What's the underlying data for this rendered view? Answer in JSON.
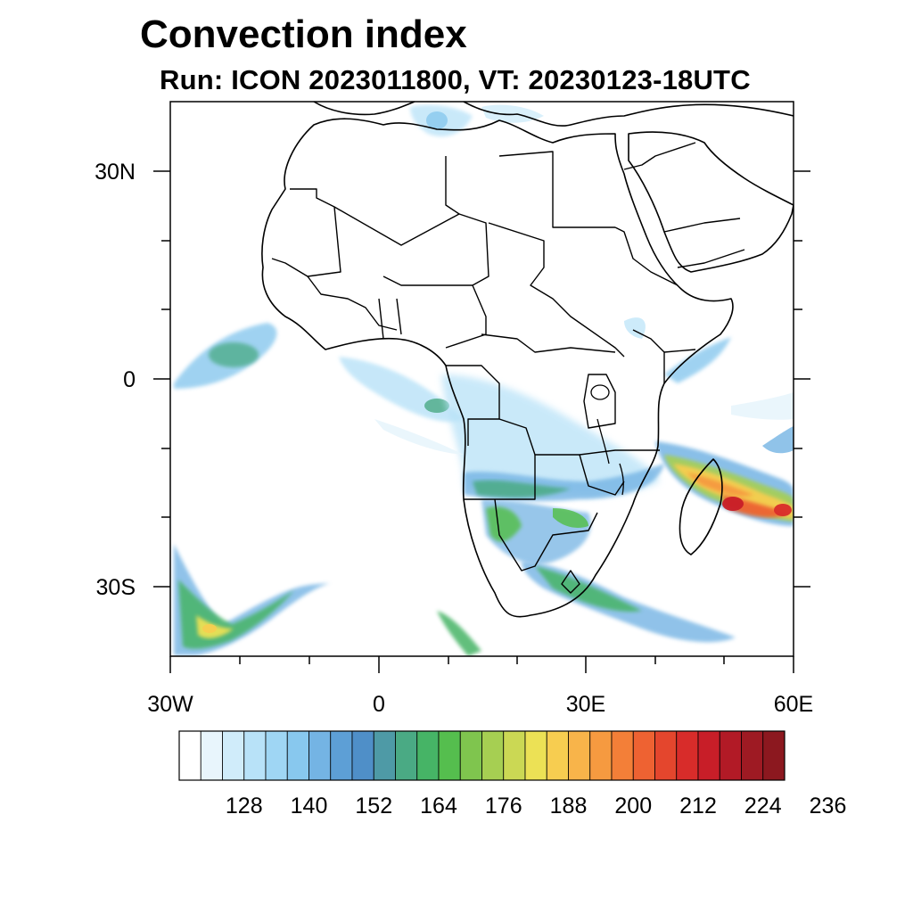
{
  "title": "Convection index",
  "subtitle": "Run: ICON 2023011800,  VT: 20230123-18UTC",
  "map": {
    "lon_labels": [
      "30W",
      "0",
      "30E",
      "60E"
    ],
    "lat_labels": [
      "30N",
      "0",
      "30S"
    ]
  },
  "colorbar": {
    "labels": [
      "128",
      "140",
      "152",
      "164",
      "176",
      "188",
      "200",
      "212",
      "224",
      "236"
    ],
    "colors": [
      "#ffffff",
      "#e8f5fc",
      "#d0ecfa",
      "#b8e2f8",
      "#9fd6f4",
      "#88c8ee",
      "#74b4e4",
      "#5d9fd6",
      "#4f8fc8",
      "#4e9aa6",
      "#4aaa84",
      "#46b466",
      "#55be4e",
      "#7fc54e",
      "#a6cf52",
      "#cbd854",
      "#ece155",
      "#f7cd50",
      "#f8b44a",
      "#f69a40",
      "#f37f38",
      "#ee6232",
      "#e4462d",
      "#d82c2a",
      "#c81e28",
      "#b21a26",
      "#9e1a23",
      "#8c181f"
    ]
  },
  "chart_data": {
    "type": "heatmap",
    "title": "Convection index",
    "subtitle": "Run: ICON 2023011800,  VT: 20230123-18UTC",
    "x_range": [
      -30,
      60
    ],
    "y_range": [
      -40,
      40
    ],
    "x_ticks": [
      "30W",
      "0",
      "30E",
      "60E"
    ],
    "y_ticks": [
      "30N",
      "0",
      "30S"
    ],
    "colorbar_labels": [
      128,
      140,
      152,
      164,
      176,
      188,
      200,
      212,
      224,
      236
    ],
    "grid": false,
    "legend": "bottom"
  }
}
